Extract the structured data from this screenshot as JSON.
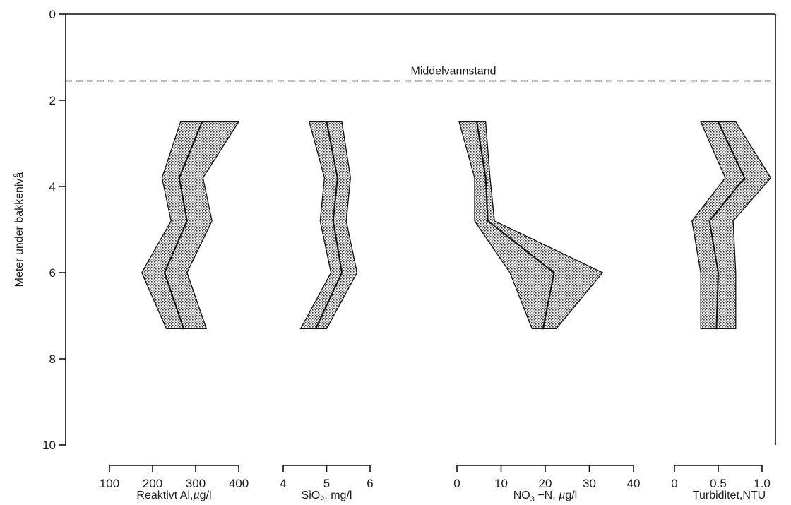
{
  "chart_data": {
    "type": "line",
    "annotation": "Middelvannstand",
    "annotation_depth": 1.55,
    "y_axis": {
      "label": "Meter under bakkenivå",
      "range": [
        0,
        10
      ],
      "ticks": [
        0,
        2,
        4,
        6,
        8,
        10
      ],
      "inverted": true
    },
    "depths": [
      2.5,
      3.8,
      4.8,
      6.0,
      7.3
    ],
    "panels": [
      {
        "name": "reaktivt-al",
        "title_parts": [
          "Reaktivt Al,",
          "µ",
          "g/l"
        ],
        "range": [
          100,
          400
        ],
        "ticks": [
          100,
          200,
          300,
          400
        ],
        "tick_labels": [
          "100",
          "200",
          "300",
          "400"
        ],
        "mean": [
          315,
          262,
          280,
          228,
          272
        ],
        "low": [
          265,
          222,
          243,
          175,
          232
        ],
        "high": [
          400,
          317,
          338,
          280,
          325
        ]
      },
      {
        "name": "sio2",
        "title_parts": [
          "SiO",
          "2",
          ", mg/l"
        ],
        "range": [
          4,
          6
        ],
        "ticks": [
          4,
          5,
          6
        ],
        "tick_labels": [
          "4",
          "5",
          "6"
        ],
        "mean": [
          5.0,
          5.25,
          5.15,
          5.35,
          4.75
        ],
        "low": [
          4.6,
          4.95,
          4.85,
          5.1,
          4.4
        ],
        "high": [
          5.35,
          5.55,
          5.45,
          5.7,
          5.0
        ]
      },
      {
        "name": "no3-n",
        "title_parts": [
          "NO",
          "3",
          " −N, ",
          "µ",
          "g/l"
        ],
        "range": [
          0,
          40
        ],
        "ticks": [
          0,
          10,
          20,
          30,
          40
        ],
        "tick_labels": [
          "0",
          "10",
          "20",
          "30",
          "40"
        ],
        "mean": [
          4.5,
          6.5,
          7.0,
          22.0,
          19.5
        ],
        "low": [
          0.5,
          4.0,
          4.0,
          12.0,
          17.0
        ],
        "high": [
          6.5,
          7.5,
          8.5,
          33.0,
          22.5
        ]
      },
      {
        "name": "turbiditet",
        "title_parts": [
          "Turbiditet,NTU"
        ],
        "range": [
          0,
          1.25
        ],
        "ticks": [
          0,
          0.5,
          1.0
        ],
        "tick_labels": [
          "0",
          "0.5",
          "1.0"
        ],
        "mean": [
          0.5,
          0.8,
          0.4,
          0.5,
          0.48
        ],
        "low": [
          0.3,
          0.58,
          0.2,
          0.3,
          0.3
        ],
        "high": [
          0.7,
          1.1,
          0.67,
          0.7,
          0.7
        ]
      }
    ]
  }
}
